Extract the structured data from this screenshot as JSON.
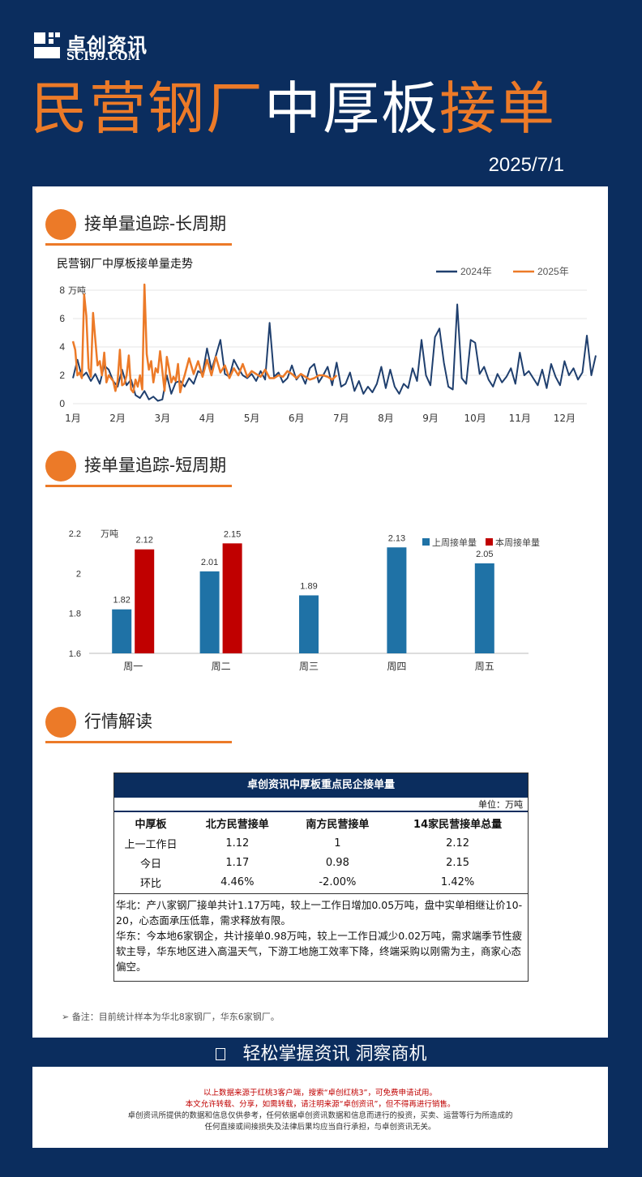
{
  "brand": {
    "name_cn": "卓创资讯",
    "name_en": "SCI99.COM"
  },
  "title": {
    "part1": "民营钢厂",
    "part2": "中厚板",
    "part3": "接单"
  },
  "date": "2025/7/1",
  "sections": {
    "long": "接单量追踪-长周期",
    "short": "接单量追踪-短周期",
    "market": "行情解读"
  },
  "colors": {
    "navy": "#0b2d5e",
    "orange": "#ec7a28",
    "blue_2024": "#1f3f6e",
    "bar_last": "#1f72a6",
    "bar_this": "#c00000"
  },
  "chart_data": [
    {
      "type": "line",
      "title": "民营钢厂中厚板接单量走势",
      "ylabel": "万吨",
      "ylim": [
        0,
        8
      ],
      "yticks": [
        "0",
        "2",
        "4",
        "6",
        "8"
      ],
      "categories": [
        "1月",
        "2月",
        "3月",
        "4月",
        "5月",
        "6月",
        "7月",
        "8月",
        "9月",
        "10月",
        "11月",
        "12月"
      ],
      "legend_position": "top-right",
      "series": [
        {
          "name": "2024年",
          "color": "#1f3f6e",
          "x": [
            0.0,
            0.1,
            0.2,
            0.3,
            0.4,
            0.5,
            0.6,
            0.7,
            0.8,
            0.9,
            1.0,
            1.1,
            1.2,
            1.3,
            1.4,
            1.5,
            1.6,
            1.7,
            1.8,
            1.9,
            2.0,
            2.1,
            2.2,
            2.3,
            2.4,
            2.5,
            2.6,
            2.7,
            2.8,
            2.9,
            3.0,
            3.1,
            3.2,
            3.3,
            3.4,
            3.5,
            3.6,
            3.7,
            3.8,
            3.9,
            4.0,
            4.1,
            4.2,
            4.3,
            4.4,
            4.5,
            4.6,
            4.7,
            4.8,
            4.9,
            5.0,
            5.1,
            5.2,
            5.3,
            5.4,
            5.5,
            5.6,
            5.7,
            5.8,
            5.9,
            6.0,
            6.1,
            6.2,
            6.3,
            6.4,
            6.5,
            6.6,
            6.7,
            6.8,
            6.9,
            7.0,
            7.1,
            7.2,
            7.3,
            7.4,
            7.5,
            7.6,
            7.7,
            7.8,
            7.9,
            8.0,
            8.1,
            8.2,
            8.3,
            8.4,
            8.5,
            8.6,
            8.7,
            8.8,
            8.9,
            9.0,
            9.1,
            9.2,
            9.3,
            9.4,
            9.5,
            9.6,
            9.7,
            9.8,
            9.9,
            10.0,
            10.1,
            10.2,
            10.3,
            10.4,
            10.5,
            10.6,
            10.7,
            10.8,
            10.9,
            11.0,
            11.1,
            11.2,
            11.3,
            11.4,
            11.5,
            11.6,
            11.7
          ],
          "values": [
            1.8,
            3.1,
            1.9,
            2.2,
            1.6,
            2.1,
            1.4,
            2.7,
            2.4,
            1.6,
            1.2,
            2.4,
            1.3,
            1.7,
            0.6,
            0.4,
            0.9,
            0.3,
            0.5,
            0.2,
            0.3,
            2.0,
            0.7,
            1.5,
            1.6,
            1.2,
            1.8,
            1.4,
            2.3,
            2.1,
            3.9,
            2.4,
            3.4,
            4.5,
            2.1,
            1.9,
            3.1,
            2.5,
            2.0,
            1.8,
            2.1,
            1.6,
            2.3,
            1.7,
            5.7,
            1.9,
            2.2,
            1.5,
            1.8,
            2.7,
            1.7,
            2.1,
            1.4,
            2.5,
            2.8,
            1.5,
            2.0,
            2.6,
            1.3,
            2.9,
            1.2,
            1.4,
            2.2,
            0.9,
            1.6,
            0.7,
            1.2,
            0.8,
            1.4,
            2.6,
            1.1,
            2.4,
            1.2,
            0.7,
            1.4,
            1.1,
            2.5,
            1.6,
            4.5,
            2.0,
            1.3,
            4.7,
            5.3,
            2.9,
            1.2,
            1.0,
            7.0,
            1.8,
            1.4,
            4.5,
            4.3,
            2.1,
            2.6,
            1.7,
            1.2,
            2.1,
            1.5,
            1.9,
            2.5,
            1.4,
            3.6,
            2.0,
            2.3,
            1.8,
            1.3,
            2.4,
            1.1,
            2.8,
            1.9,
            1.3,
            3.0,
            2.0,
            2.5,
            1.7,
            2.2,
            4.8,
            2.0,
            3.4
          ]
        },
        {
          "name": "2025年",
          "color": "#ec7a28",
          "x": [
            0.0,
            0.05,
            0.1,
            0.15,
            0.2,
            0.25,
            0.3,
            0.35,
            0.4,
            0.45,
            0.5,
            0.55,
            0.6,
            0.65,
            0.7,
            0.75,
            0.8,
            0.85,
            0.9,
            0.95,
            1.0,
            1.05,
            1.1,
            1.15,
            1.2,
            1.25,
            1.3,
            1.35,
            1.4,
            1.45,
            1.5,
            1.55,
            1.6,
            1.65,
            1.7,
            1.75,
            1.8,
            1.85,
            1.9,
            1.95,
            2.0,
            2.05,
            2.1,
            2.15,
            2.2,
            2.25,
            2.3,
            2.35,
            2.4,
            2.45,
            2.5,
            2.6,
            2.7,
            2.8,
            2.9,
            3.0,
            3.1,
            3.2,
            3.3,
            3.4,
            3.5,
            3.6,
            3.7,
            3.8,
            3.9,
            4.0,
            4.1,
            4.2,
            4.3,
            4.4,
            4.5,
            4.6,
            4.7,
            4.8,
            4.9,
            5.0,
            5.1,
            5.2,
            5.3,
            5.4,
            5.5,
            5.6,
            5.7,
            5.8,
            5.9
          ],
          "values": [
            4.4,
            3.8,
            2.0,
            2.2,
            1.8,
            7.7,
            6.2,
            2.5,
            1.9,
            6.4,
            4.5,
            2.7,
            3.0,
            2.0,
            3.6,
            1.5,
            2.0,
            1.8,
            1.6,
            0.9,
            1.6,
            3.8,
            1.3,
            1.4,
            2.0,
            3.4,
            1.0,
            0.8,
            1.7,
            1.2,
            2.0,
            1.0,
            8.4,
            3.5,
            2.4,
            3.0,
            1.5,
            2.5,
            2.2,
            3.7,
            2.3,
            0.9,
            3.3,
            2.5,
            1.5,
            1.9,
            1.6,
            2.8,
            0.8,
            1.5,
            2.0,
            3.2,
            2.1,
            3.0,
            1.9,
            3.1,
            2.0,
            3.3,
            2.2,
            2.7,
            1.8,
            2.5,
            2.0,
            2.8,
            1.9,
            2.3,
            2.1,
            1.9,
            2.4,
            1.8,
            1.8,
            2.0,
            1.9,
            2.3,
            2.1,
            1.8,
            2.1,
            1.9,
            1.7,
            1.8,
            2.0,
            2.0,
            1.9,
            1.7,
            2.0
          ]
        }
      ]
    },
    {
      "type": "bar",
      "ylabel": "万吨",
      "ylim": [
        1.6,
        2.2
      ],
      "yticks": [
        "1.6",
        "1.8",
        "2",
        "2.2"
      ],
      "categories": [
        "周一",
        "周二",
        "周三",
        "周四",
        "周五"
      ],
      "legend_position": "top-right",
      "series": [
        {
          "name": "上周接单量",
          "color": "#1f72a6",
          "values": [
            1.82,
            2.01,
            1.89,
            2.13,
            2.05
          ],
          "labels": [
            "1.82",
            "2.01",
            "1.89",
            "2.13",
            "2.05"
          ]
        },
        {
          "name": "本周接单量",
          "color": "#c00000",
          "values": [
            2.12,
            2.15,
            null,
            null,
            null
          ],
          "labels": [
            "2.12",
            "2.15",
            "",
            "",
            ""
          ]
        }
      ]
    }
  ],
  "table": {
    "title": "卓创资讯中厚板重点民企接单量",
    "unit": "单位：万吨",
    "headers": [
      "中厚板",
      "北方民营接单",
      "南方民营接单",
      "14家民营接单总量"
    ],
    "rows": [
      [
        "上一工作日",
        "1.12",
        "1",
        "2.12"
      ],
      [
        "今日",
        "1.17",
        "0.98",
        "2.15"
      ],
      [
        "环比",
        "4.46%",
        "-2.00%",
        "1.42%"
      ]
    ],
    "note_north": "华北：产八家钢厂接单共计1.17万吨，较上一工作日增加0.05万吨，盘中实单相继让价10-20，心态面承压低靠，需求释放有限。",
    "note_east": "华东：今本地6家钢企，共计接单0.98万吨，较上一工作日减少0.02万吨，需求端季节性疲软主导，华东地区进入高温天气，下游工地施工效率下降，终端采购以刚需为主，商家心态偏空。"
  },
  "remark": "➢  备注：目前统计样本为华北8家钢厂，华东6家钢厂。",
  "slogan": "轻松掌握资讯  洞察商机",
  "footer": {
    "line1": "以上数据来源于红桃3客户端，搜索“卓创红桃3”，可免费申请试用。",
    "line2": "本文允许转载、分享，如需转载，请注明来源“卓创资讯”，但不得再进行销售。",
    "line3": "卓创资讯所提供的数据和信息仅供参考，任何依据卓创资讯数据和信息而进行的投资，买卖、运营等行为所造成的",
    "line4": "任何直接或间接损失及法律后果均应当自行承担，与卓创资讯无关。"
  }
}
